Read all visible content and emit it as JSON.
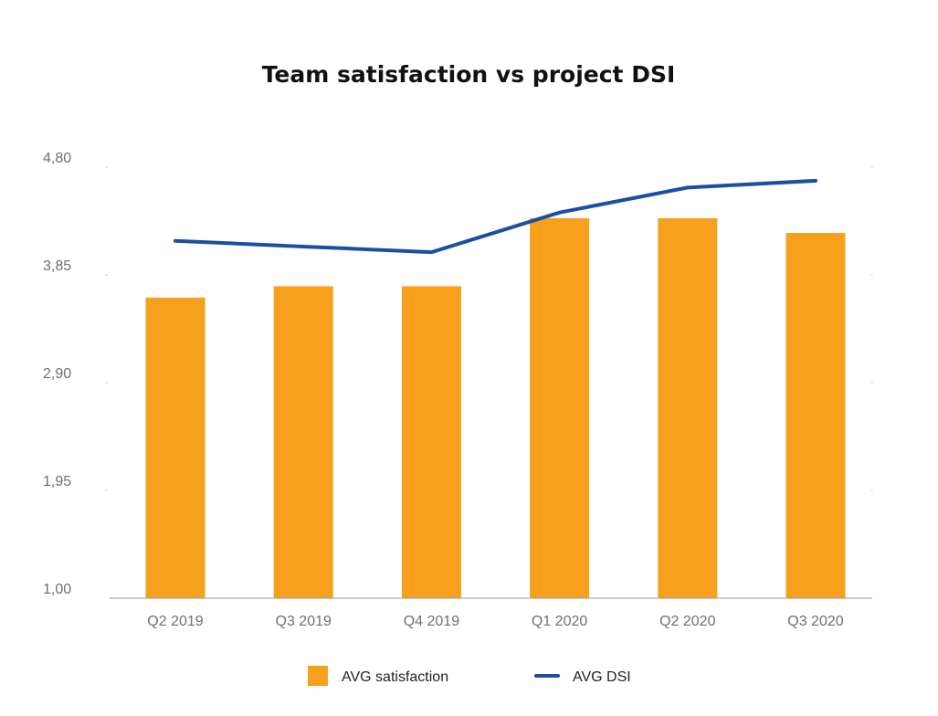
{
  "chart_data": {
    "type": "bar+line",
    "title": "Team satisfaction vs project DSI",
    "categories": [
      "Q2 2019",
      "Q3 2019",
      "Q4 2019",
      "Q1 2020",
      "Q2 2020",
      "Q3 2020"
    ],
    "series": [
      {
        "name": "AVG satisfaction",
        "type": "bar",
        "color": "#f7a01e",
        "values": [
          3.65,
          3.75,
          3.75,
          4.35,
          4.35,
          4.22
        ]
      },
      {
        "name": "AVG DSI",
        "type": "line",
        "color": "#1b4fa3",
        "values": [
          4.15,
          4.1,
          4.05,
          4.4,
          4.62,
          4.68
        ]
      }
    ],
    "ylim": [
      1.0,
      4.8
    ],
    "yticks": [
      1.0,
      1.95,
      2.9,
      3.85,
      4.8
    ],
    "ytick_labels": [
      "1,00",
      "1,95",
      "2,90",
      "3,85",
      "4,80"
    ],
    "xlabel": "",
    "ylabel": "",
    "legend_position": "bottom",
    "grid": false
  }
}
